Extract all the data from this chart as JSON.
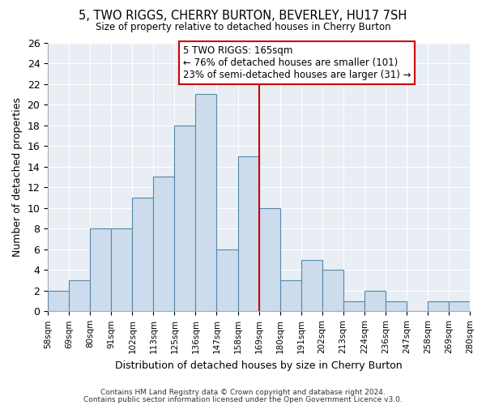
{
  "title": "5, TWO RIGGS, CHERRY BURTON, BEVERLEY, HU17 7SH",
  "subtitle": "Size of property relative to detached houses in Cherry Burton",
  "xlabel": "Distribution of detached houses by size in Cherry Burton",
  "ylabel": "Number of detached properties",
  "bin_labels": [
    "58sqm",
    "69sqm",
    "80sqm",
    "91sqm",
    "102sqm",
    "113sqm",
    "125sqm",
    "136sqm",
    "147sqm",
    "158sqm",
    "169sqm",
    "180sqm",
    "191sqm",
    "202sqm",
    "213sqm",
    "224sqm",
    "236sqm",
    "247sqm",
    "258sqm",
    "269sqm",
    "280sqm"
  ],
  "bar_heights": [
    2,
    3,
    8,
    8,
    11,
    13,
    18,
    21,
    6,
    15,
    10,
    3,
    5,
    4,
    1,
    2,
    1,
    0,
    1,
    1
  ],
  "bar_color": "#ccdcec",
  "bar_edge_color": "#5588aa",
  "vline_color": "#cc0000",
  "annotation_title": "5 TWO RIGGS: 165sqm",
  "annotation_line1": "← 76% of detached houses are smaller (101)",
  "annotation_line2": "23% of semi-detached houses are larger (31) →",
  "annotation_box_color": "#ffffff",
  "annotation_box_edge": "#cc0000",
  "ylim": [
    0,
    26
  ],
  "yticks": [
    0,
    2,
    4,
    6,
    8,
    10,
    12,
    14,
    16,
    18,
    20,
    22,
    24,
    26
  ],
  "background_color": "#e8eef4",
  "footer1": "Contains HM Land Registry data © Crown copyright and database right 2024.",
  "footer2": "Contains public sector information licensed under the Open Government Licence v3.0."
}
